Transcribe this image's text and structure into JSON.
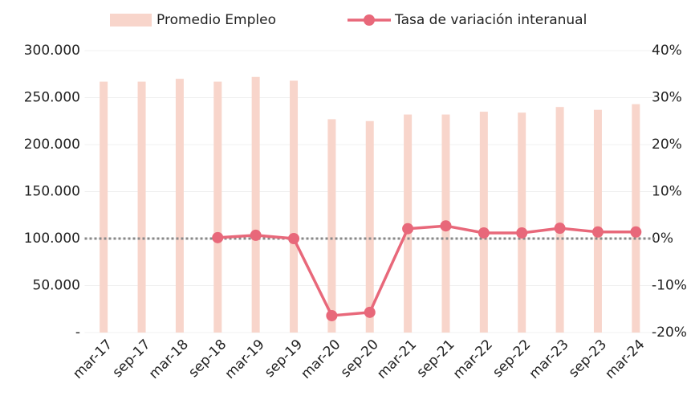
{
  "chart_data": {
    "type": "bar_line",
    "categories": [
      "mar-17",
      "sep-17",
      "mar-18",
      "sep-18",
      "mar-19",
      "sep-19",
      "mar-20",
      "sep-20",
      "mar-21",
      "sep-21",
      "mar-22",
      "sep-22",
      "mar-23",
      "sep-23",
      "mar-24"
    ],
    "series": [
      {
        "name": "Promedio Empleo",
        "type": "bar",
        "color": "#f8d5cb",
        "values": [
          267000,
          267000,
          270000,
          267000,
          272000,
          268000,
          227000,
          225000,
          232000,
          232000,
          235000,
          234000,
          240000,
          237000,
          243000
        ]
      },
      {
        "name": "Tasa de variación interanual",
        "type": "line",
        "axis": "y2",
        "color": "#e8687a",
        "values": [
          null,
          null,
          null,
          0.2,
          0.7,
          0,
          -16.4,
          -15.7,
          2.1,
          2.7,
          1.2,
          1.2,
          2.2,
          1.4,
          1.4
        ]
      }
    ],
    "ylim": [
      0,
      300000
    ],
    "yticks": [
      {
        "value": 0,
        "label": "-"
      },
      {
        "value": 50000,
        "label": "50.000"
      },
      {
        "value": 100000,
        "label": "100.000"
      },
      {
        "value": 150000,
        "label": "150.000"
      },
      {
        "value": 200000,
        "label": "200.000"
      },
      {
        "value": 250000,
        "label": "250.000"
      },
      {
        "value": 300000,
        "label": "300.000"
      }
    ],
    "y2lim": [
      -20,
      40
    ],
    "y2ticks": [
      {
        "value": -20,
        "label": "-20%"
      },
      {
        "value": -10,
        "label": "-10%"
      },
      {
        "value": 0,
        "label": "0%"
      },
      {
        "value": 10,
        "label": "10%"
      },
      {
        "value": 20,
        "label": "20%"
      },
      {
        "value": 30,
        "label": "30%"
      },
      {
        "value": 40,
        "label": "40%"
      }
    ],
    "grid": true,
    "legend": "top"
  }
}
